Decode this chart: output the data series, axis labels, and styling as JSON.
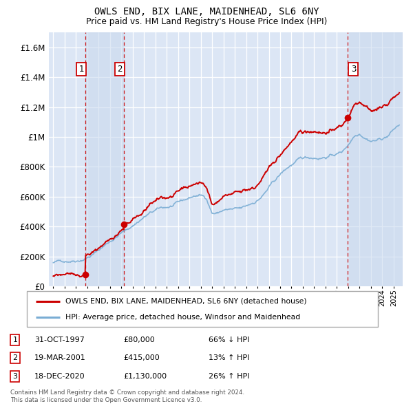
{
  "title": "OWLS END, BIX LANE, MAIDENHEAD, SL6 6NY",
  "subtitle": "Price paid vs. HM Land Registry's House Price Index (HPI)",
  "ylim": [
    0,
    1700000
  ],
  "yticks": [
    0,
    200000,
    400000,
    600000,
    800000,
    1000000,
    1200000,
    1400000,
    1600000
  ],
  "ytick_labels": [
    "£0",
    "£200K",
    "£400K",
    "£600K",
    "£800K",
    "£1M",
    "£1.2M",
    "£1.4M",
    "£1.6M"
  ],
  "background_color": "#ffffff",
  "plot_background": "#dce6f5",
  "grid_color": "#ffffff",
  "sale_dates": [
    1997.833,
    2001.213,
    2020.958
  ],
  "sale_prices": [
    80000,
    415000,
    1130000
  ],
  "sale_labels": [
    "1",
    "2",
    "3"
  ],
  "sale_color": "#cc0000",
  "hpi_color": "#7aadd4",
  "legend_entries": [
    "OWLS END, BIX LANE, MAIDENHEAD, SL6 6NY (detached house)",
    "HPI: Average price, detached house, Windsor and Maidenhead"
  ],
  "table_data": [
    [
      "1",
      "31-OCT-1997",
      "£80,000",
      "66% ↓ HPI"
    ],
    [
      "2",
      "19-MAR-2001",
      "£415,000",
      "13% ↑ HPI"
    ],
    [
      "3",
      "18-DEC-2020",
      "£1,130,000",
      "26% ↑ HPI"
    ]
  ],
  "footnote1": "Contains HM Land Registry data © Crown copyright and database right 2024.",
  "footnote2": "This data is licensed under the Open Government Licence v3.0.",
  "xmin": 1994.6,
  "xmax": 2025.8,
  "xtick_start": 1995,
  "xtick_end": 2025
}
